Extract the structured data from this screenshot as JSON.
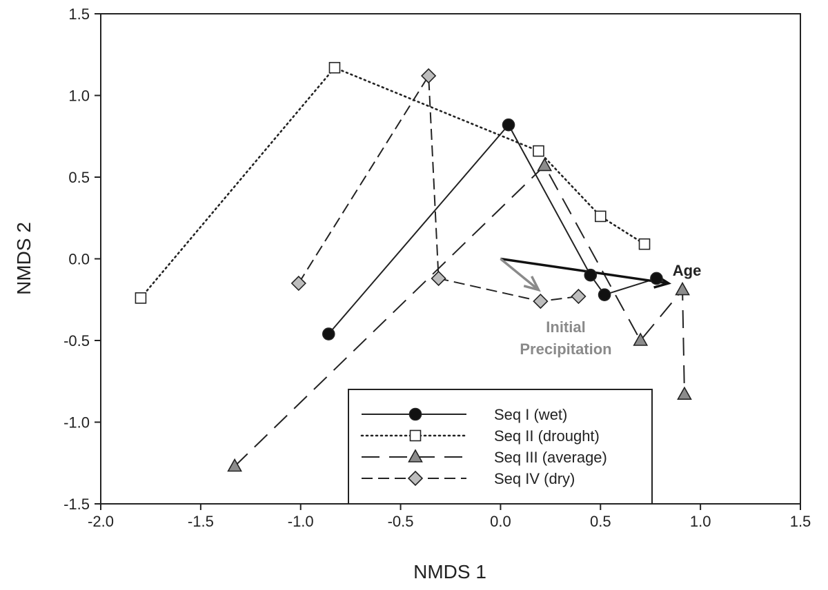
{
  "chart_data": {
    "type": "scatter",
    "xlabel": "NMDS 1",
    "ylabel": "NMDS 2",
    "xlim": [
      -2.0,
      1.5
    ],
    "ylim": [
      -1.5,
      1.5
    ],
    "x_ticks": [
      "-2.0",
      "-1.5",
      "-1.0",
      "-0.5",
      "0.0",
      "0.5",
      "1.0",
      "1.5"
    ],
    "y_ticks": [
      "-1.5",
      "-1.0",
      "-0.5",
      "0.0",
      "0.5",
      "1.0",
      "1.5"
    ],
    "grid": false,
    "legend_position": "bottom-center",
    "series": [
      {
        "name": "Seq I (wet)",
        "line_style": "solid",
        "marker": "circle",
        "marker_fill": "#111111",
        "points": [
          {
            "x": -0.86,
            "y": -0.46
          },
          {
            "x": 0.04,
            "y": 0.82
          },
          {
            "x": 0.45,
            "y": -0.1
          },
          {
            "x": 0.52,
            "y": -0.22
          },
          {
            "x": 0.78,
            "y": -0.12
          }
        ]
      },
      {
        "name": "Seq II (drought)",
        "line_style": "dotted",
        "marker": "square",
        "marker_fill": "#ffffff",
        "points": [
          {
            "x": -1.8,
            "y": -0.24
          },
          {
            "x": -0.83,
            "y": 1.17
          },
          {
            "x": 0.19,
            "y": 0.66
          },
          {
            "x": 0.5,
            "y": 0.26
          },
          {
            "x": 0.72,
            "y": 0.09
          }
        ]
      },
      {
        "name": "Seq III (average)",
        "line_style": "long-dash",
        "marker": "triangle",
        "marker_fill": "#8c8c8c",
        "points": [
          {
            "x": -1.33,
            "y": -1.27
          },
          {
            "x": 0.22,
            "y": 0.57
          },
          {
            "x": 0.7,
            "y": -0.5
          },
          {
            "x": 0.91,
            "y": -0.19
          },
          {
            "x": 0.92,
            "y": -0.83
          }
        ]
      },
      {
        "name": "Seq IV (dry)",
        "line_style": "dashed",
        "marker": "diamond",
        "marker_fill": "#bdbdbd",
        "points": [
          {
            "x": -1.01,
            "y": -0.15
          },
          {
            "x": -0.36,
            "y": 1.12
          },
          {
            "x": -0.31,
            "y": -0.12
          },
          {
            "x": 0.2,
            "y": -0.26
          },
          {
            "x": 0.39,
            "y": -0.23
          }
        ]
      }
    ],
    "vectors": [
      {
        "label": "Age",
        "color": "#111111",
        "x0": 0.0,
        "y0": 0.0,
        "x1": 0.84,
        "y1": -0.15
      },
      {
        "label_lines": [
          "Initial",
          "Precipitation"
        ],
        "color": "#8a8a8a",
        "x0": 0.0,
        "y0": 0.0,
        "x1": 0.19,
        "y1": -0.19
      }
    ]
  }
}
